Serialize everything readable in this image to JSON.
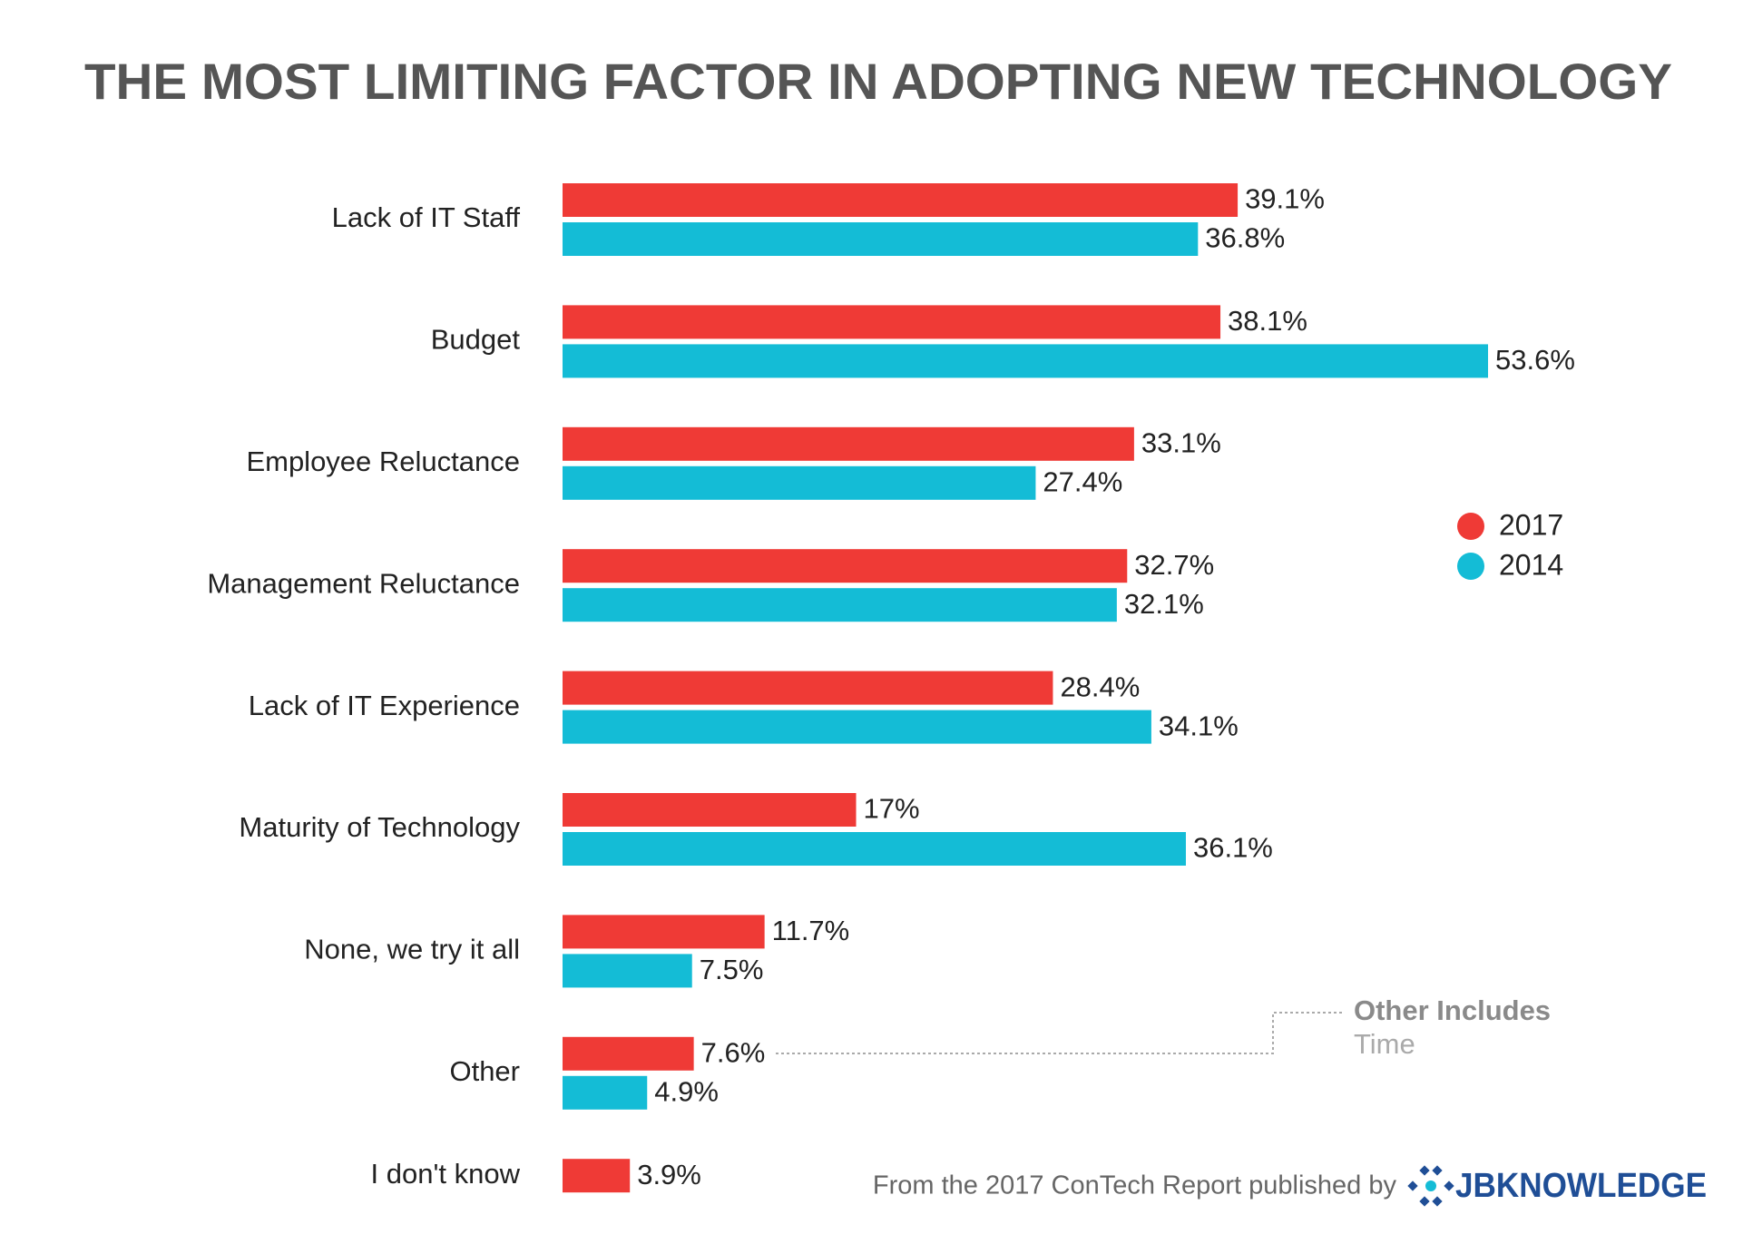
{
  "chart_data": {
    "type": "bar",
    "orientation": "horizontal",
    "title": "THE MOST LIMITING FACTOR IN ADOPTING NEW TECHNOLOGY",
    "categories": [
      "Lack of IT Staff",
      "Budget",
      "Employee Reluctance",
      "Management Reluctance",
      "Lack of IT Experience",
      "Maturity of Technology",
      "None, we try it all",
      "Other",
      "I don't know"
    ],
    "series": [
      {
        "name": "2017",
        "color": "#ef3a36",
        "values": [
          39.1,
          38.1,
          33.1,
          32.7,
          28.4,
          17,
          11.7,
          7.6,
          3.9
        ],
        "value_labels": [
          "39.1%",
          "38.1%",
          "33.1%",
          "32.7%",
          "28.4%",
          "17%",
          "11.7%",
          "7.6%",
          "3.9%"
        ]
      },
      {
        "name": "2014",
        "color": "#14bcd6",
        "values": [
          36.8,
          53.6,
          27.4,
          32.1,
          34.1,
          36.1,
          7.5,
          4.9,
          null
        ],
        "value_labels": [
          "36.8%",
          "53.6%",
          "27.4%",
          "32.1%",
          "34.1%",
          "36.1%",
          "7.5%",
          "4.9%",
          null
        ]
      }
    ],
    "annotation": {
      "title": "Other Includes",
      "text": "Time"
    },
    "source": "From the 2017 ConTech Report published by",
    "logo": "JBKNOWLEDGE"
  }
}
